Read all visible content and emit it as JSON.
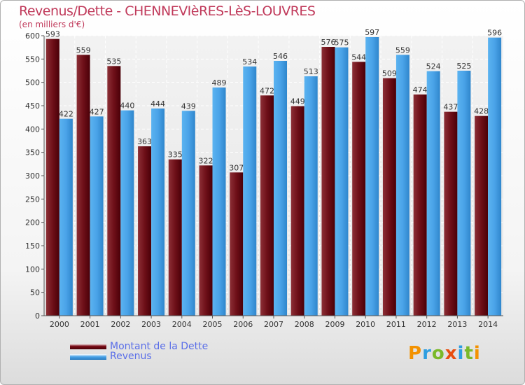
{
  "title": "Revenus/Dette - CHENNEVIèRES-LèS-LOUVRES",
  "subtitle": "(en milliers d'€)",
  "legend": [
    {
      "label": "Montant de la Dette",
      "color": "#7a0a14"
    },
    {
      "label": "Revenus",
      "color": "#4aa3e8"
    }
  ],
  "logo": {
    "letters": [
      "P",
      "r",
      "o",
      "x",
      "i",
      "t",
      "i"
    ],
    "colors": [
      "#f39200",
      "#2e9ee0",
      "#7ab929",
      "#e84e0f",
      "#2e9ee0",
      "#7ab929",
      "#f39200"
    ]
  },
  "chart_data": {
    "type": "bar",
    "categories": [
      "2000",
      "2001",
      "2002",
      "2003",
      "2004",
      "2005",
      "2006",
      "2007",
      "2008",
      "2009",
      "2010",
      "2011",
      "2012",
      "2013",
      "2014"
    ],
    "series": [
      {
        "name": "Montant de la Dette",
        "color": "#7a0a14",
        "values": [
          593,
          559,
          535,
          363,
          335,
          322,
          307,
          472,
          449,
          576,
          544,
          509,
          474,
          437,
          428
        ]
      },
      {
        "name": "Revenus",
        "color": "#4aa3e8",
        "values": [
          422,
          427,
          440,
          444,
          439,
          489,
          534,
          546,
          513,
          575,
          597,
          559,
          524,
          525,
          596
        ]
      }
    ],
    "yticks": [
      0,
      50,
      100,
      150,
      200,
      250,
      300,
      350,
      400,
      450,
      500,
      550,
      600
    ],
    "ylim": [
      0,
      600
    ],
    "grid": true
  }
}
